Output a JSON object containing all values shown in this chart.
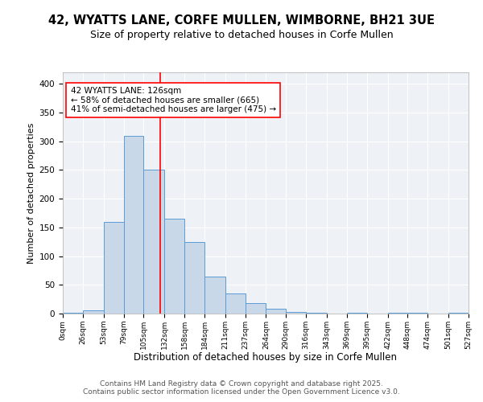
{
  "title1": "42, WYATTS LANE, CORFE MULLEN, WIMBORNE, BH21 3UE",
  "title2": "Size of property relative to detached houses in Corfe Mullen",
  "xlabel": "Distribution of detached houses by size in Corfe Mullen",
  "ylabel": "Number of detached properties",
  "bin_labels": [
    "0sqm",
    "26sqm",
    "53sqm",
    "79sqm",
    "105sqm",
    "132sqm",
    "158sqm",
    "184sqm",
    "211sqm",
    "237sqm",
    "264sqm",
    "290sqm",
    "316sqm",
    "343sqm",
    "369sqm",
    "395sqm",
    "422sqm",
    "448sqm",
    "474sqm",
    "501sqm",
    "527sqm"
  ],
  "bar_heights": [
    2,
    5,
    160,
    310,
    250,
    165,
    125,
    65,
    35,
    18,
    9,
    3,
    2,
    0,
    2,
    0,
    2,
    1,
    0,
    2
  ],
  "bin_edges": [
    0,
    26,
    53,
    79,
    105,
    132,
    158,
    184,
    211,
    237,
    264,
    290,
    316,
    343,
    369,
    395,
    422,
    448,
    474,
    501,
    527
  ],
  "bar_color": "#c8d8e8",
  "bar_edgecolor": "#5b9bd5",
  "vline_x": 126,
  "vline_color": "red",
  "annotation_text": "42 WYATTS LANE: 126sqm\n← 58% of detached houses are smaller (665)\n41% of semi-detached houses are larger (475) →",
  "annotation_box_color": "white",
  "annotation_box_edgecolor": "red",
  "ylim": [
    0,
    420
  ],
  "yticks": [
    0,
    50,
    100,
    150,
    200,
    250,
    300,
    350,
    400
  ],
  "background_color": "#eef2f7",
  "footer_text": "Contains HM Land Registry data © Crown copyright and database right 2025.\nContains public sector information licensed under the Open Government Licence v3.0.",
  "title1_fontsize": 10.5,
  "title2_fontsize": 9,
  "xlabel_fontsize": 8.5,
  "ylabel_fontsize": 8,
  "footer_fontsize": 6.5,
  "annotation_fontsize": 7.5
}
